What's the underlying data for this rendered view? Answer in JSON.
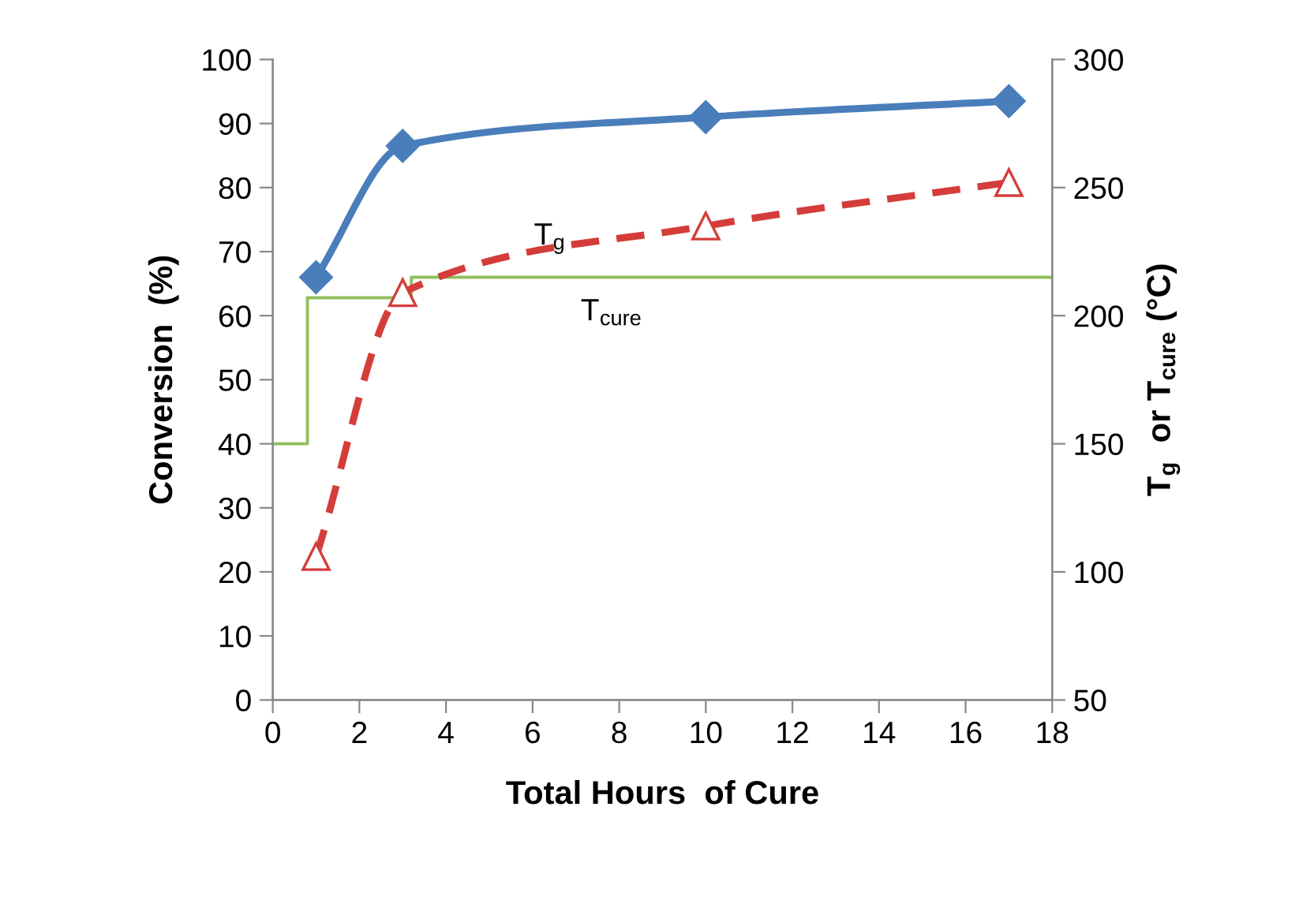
{
  "chart_data": {
    "type": "line",
    "xlabel": "Total Hours  of Cure",
    "ylabel": "Conversion  (%)",
    "y2label": "T$_{g}$  or T$_{cure}$ (°C)",
    "xlim": [
      0,
      18
    ],
    "xticks": [
      0,
      2,
      4,
      6,
      8,
      10,
      12,
      14,
      16,
      18
    ],
    "ylim": [
      0,
      100
    ],
    "yticks": [
      0,
      10,
      20,
      30,
      40,
      50,
      60,
      70,
      80,
      90,
      100
    ],
    "y2lim": [
      50,
      300
    ],
    "y2ticks": [
      50,
      100,
      150,
      200,
      250,
      300
    ],
    "grid": false,
    "legend": false,
    "series": [
      {
        "color": "#4a7ebb",
        "x": [
          1,
          3,
          10,
          17
        ],
        "values": [
          66,
          86.5,
          91,
          93.5
        ],
        "marker": "diamond",
        "line_style": "solid"
      },
      {
        "color": "#d43d3a",
        "x": [
          1,
          3,
          10,
          17
        ],
        "values": [
          106,
          209,
          235,
          252
        ],
        "axis": "y2",
        "marker": "triangle",
        "line_style": "dashed"
      },
      {
        "type": "step",
        "color": "#8fc05a",
        "x": [
          0,
          0.8,
          3.2,
          18
        ],
        "values": [
          150,
          207,
          215,
          215
        ],
        "axis": "y2",
        "marker": "none",
        "line_style": "solid"
      }
    ],
    "annotations": [
      "T$_{g}$",
      "T$_{cure}$"
    ]
  }
}
